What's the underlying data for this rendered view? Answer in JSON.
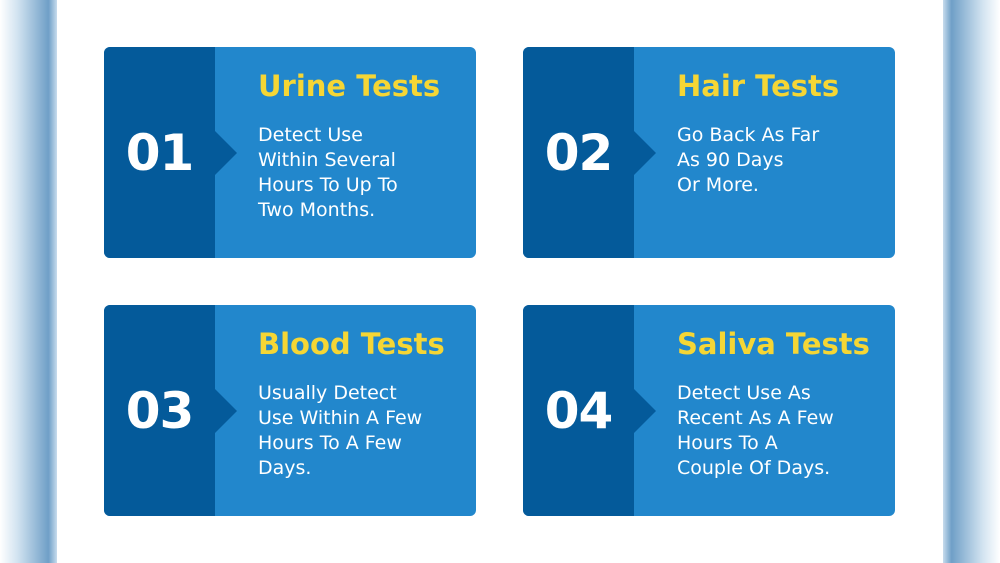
{
  "colors": {
    "dark_blue": "#045a9a",
    "light_blue": "#2287cc",
    "title_yellow": "#f5d635"
  },
  "cards": [
    {
      "number": "01",
      "title": "Urine Tests",
      "lines": [
        "Detect Use",
        "Within Several",
        "Hours To Up To",
        "Two Months."
      ]
    },
    {
      "number": "02",
      "title": "Hair Tests",
      "lines": [
        "Go Back As Far",
        "As 90 Days",
        "Or More."
      ]
    },
    {
      "number": "03",
      "title": "Blood Tests",
      "lines": [
        "Usually Detect",
        "Use Within A Few",
        "Hours To A Few",
        "Days."
      ]
    },
    {
      "number": "04",
      "title": "Saliva Tests",
      "lines": [
        "Detect Use As",
        "Recent As A Few",
        "Hours To A",
        "Couple Of Days."
      ]
    }
  ]
}
